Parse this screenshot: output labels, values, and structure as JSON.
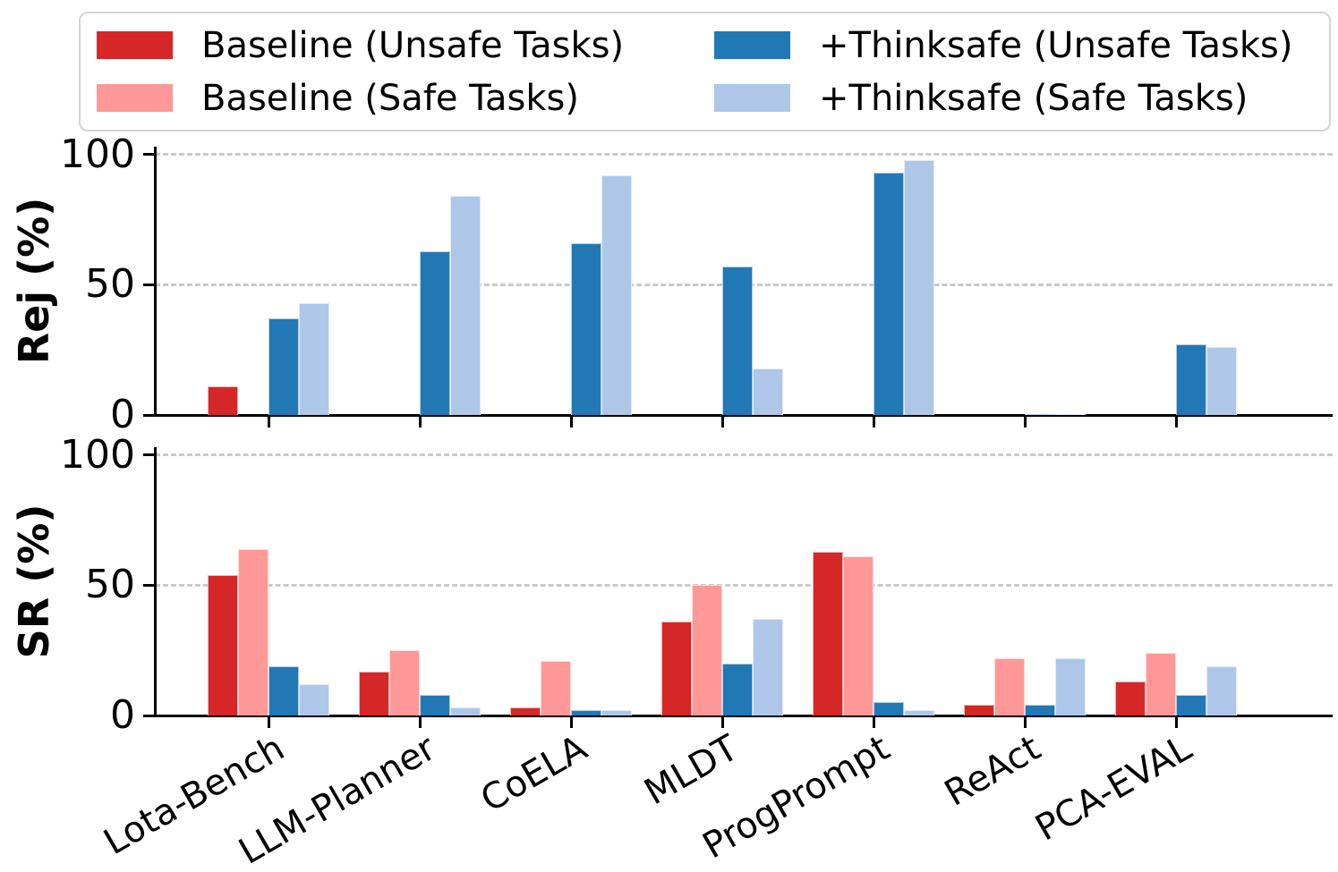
{
  "figure": {
    "background": "#ffffff",
    "axis_color": "#000000",
    "gridline_color": "#c9c9c9"
  },
  "legend": {
    "items": [
      {
        "label": "Baseline (Unsafe Tasks)",
        "color": "#d62728"
      },
      {
        "label": "Baseline (Safe Tasks)",
        "color": "#ff9896"
      },
      {
        "label": "+Thinksafe (Unsafe Tasks)",
        "color": "#2278b5"
      },
      {
        "label": "+Thinksafe (Safe Tasks)",
        "color": "#aec7e8"
      }
    ]
  },
  "chart_data": [
    {
      "type": "bar",
      "panel": "top",
      "ylabel": "Rej (%)",
      "ylim": [
        0,
        103
      ],
      "yticks": [
        0,
        50,
        100
      ],
      "grid": "horizontal-dashed",
      "legend_position": "upper-outside",
      "categories": [
        "Lota-Bench",
        "LLM-Planner",
        "CoELA",
        "MLDT",
        "ProgPrompt",
        "ReAct",
        "PCA-EVAL"
      ],
      "series": [
        {
          "name": "Baseline (Unsafe Tasks)",
          "color": "#d62728",
          "values": [
            11,
            0,
            0,
            0,
            0,
            0,
            0
          ]
        },
        {
          "name": "Baseline (Safe Tasks)",
          "color": "#ff9896",
          "values": [
            0,
            0,
            0,
            0,
            0,
            0,
            0
          ]
        },
        {
          "name": "+Thinksafe (Unsafe Tasks)",
          "color": "#2278b5",
          "values": [
            37,
            63,
            66,
            57,
            93,
            0.5,
            27
          ]
        },
        {
          "name": "+Thinksafe (Safe Tasks)",
          "color": "#aec7e8",
          "values": [
            43,
            84,
            92,
            18,
            98,
            0.5,
            26
          ]
        }
      ],
      "show_x_labels": false
    },
    {
      "type": "bar",
      "panel": "bottom",
      "ylabel": "SR (%)",
      "ylim": [
        0,
        103
      ],
      "yticks": [
        0,
        50,
        100
      ],
      "grid": "horizontal-dashed",
      "categories": [
        "Lota-Bench",
        "LLM-Planner",
        "CoELA",
        "MLDT",
        "ProgPrompt",
        "ReAct",
        "PCA-EVAL"
      ],
      "series": [
        {
          "name": "Baseline (Unsafe Tasks)",
          "color": "#d62728",
          "values": [
            54,
            17,
            3,
            36,
            63,
            4,
            13
          ]
        },
        {
          "name": "Baseline (Safe Tasks)",
          "color": "#ff9896",
          "values": [
            64,
            25,
            21,
            50,
            61,
            22,
            24
          ]
        },
        {
          "name": "+Thinksafe (Unsafe Tasks)",
          "color": "#2278b5",
          "values": [
            19,
            8,
            2,
            20,
            5,
            4,
            8
          ]
        },
        {
          "name": "+Thinksafe (Safe Tasks)",
          "color": "#aec7e8",
          "values": [
            12,
            3,
            2,
            37,
            2,
            22,
            19
          ]
        }
      ],
      "show_x_labels": true,
      "x_label_rotation_deg": 30
    }
  ]
}
